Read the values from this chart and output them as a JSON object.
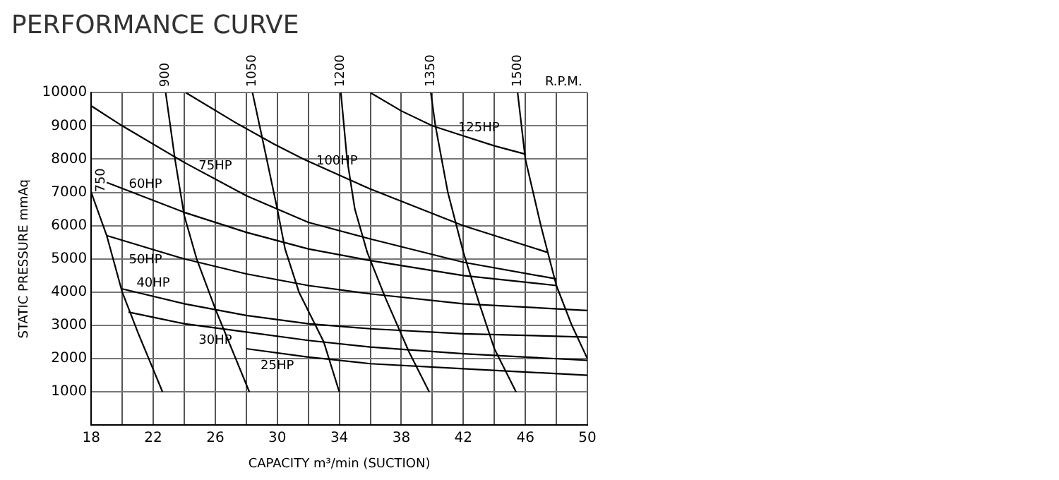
{
  "chart_data": {
    "type": "line",
    "title": "PERFORMANCE CURVE",
    "xlabel": "CAPACITY m³/min (SUCTION)",
    "ylabel": "STATIC PRESSURE mmAq",
    "xlim": [
      18,
      50
    ],
    "ylim": [
      0,
      10000
    ],
    "xticks": [
      18,
      {
        "value": 20,
        "label": null
      },
      22,
      {
        "value": 24,
        "label": null
      },
      26,
      {
        "value": 28,
        "label": null
      },
      30,
      {
        "value": 32,
        "label": null
      },
      34,
      {
        "value": 36,
        "label": null
      },
      38,
      {
        "value": 40,
        "label": null
      },
      42,
      {
        "value": 44,
        "label": null
      },
      46,
      {
        "value": 48,
        "label": null
      },
      50
    ],
    "yticks": [
      1000,
      2000,
      3000,
      4000,
      5000,
      6000,
      7000,
      8000,
      9000,
      10000
    ],
    "grid": true,
    "legend": false,
    "marker": "none",
    "line_style": "solid",
    "annotations": [
      "R.P.M."
    ],
    "series": [
      {
        "name": "125HP",
        "color": "#000000",
        "x": [
          36,
          38,
          40,
          42,
          44,
          46
        ],
        "values": [
          10000,
          9450,
          9000,
          8700,
          8400,
          8150
        ]
      },
      {
        "name": "100HP",
        "color": "#000000",
        "x": [
          24.1,
          27.3,
          29.8,
          31.7,
          36,
          42,
          47.4
        ],
        "values": [
          10000,
          9100,
          8450,
          8000,
          7100,
          6000,
          5200
        ]
      },
      {
        "name": "75HP",
        "color": "#000000",
        "x": [
          18,
          20,
          24,
          28,
          32,
          36,
          42,
          48
        ],
        "values": [
          9600,
          9000,
          7900,
          6900,
          6100,
          5600,
          4900,
          4400
        ]
      },
      {
        "name": "60HP",
        "color": "#000000",
        "x": [
          19,
          24,
          28,
          32,
          36,
          42,
          48
        ],
        "values": [
          7300,
          6400,
          5800,
          5300,
          4950,
          4500,
          4200
        ]
      },
      {
        "name": "50HP",
        "color": "#000000",
        "x": [
          19,
          24,
          28,
          32,
          36,
          42,
          50
        ],
        "values": [
          5700,
          5000,
          4550,
          4200,
          3950,
          3650,
          3450
        ]
      },
      {
        "name": "40HP",
        "color": "#000000",
        "x": [
          20,
          24,
          28,
          32,
          36,
          42,
          50
        ],
        "values": [
          4100,
          3650,
          3300,
          3050,
          2900,
          2750,
          2650
        ]
      },
      {
        "name": "30HP",
        "color": "#000000",
        "x": [
          20.4,
          24,
          28,
          32,
          36,
          42,
          50
        ],
        "values": [
          3400,
          3050,
          2800,
          2550,
          2350,
          2150,
          1950
        ]
      },
      {
        "name": "25HP",
        "color": "#000000",
        "x": [
          28,
          32,
          36,
          42,
          50
        ],
        "values": [
          2300,
          2050,
          1850,
          1700,
          1500
        ]
      },
      {
        "name": "750",
        "color": "#000000",
        "x": [
          18,
          19,
          20,
          21,
          22.6
        ],
        "values": [
          7000,
          5700,
          4000,
          2800,
          1000
        ]
      },
      {
        "name": "900",
        "color": "#000000",
        "x": [
          22.8,
          23.4,
          24,
          24.8,
          26,
          28.2
        ],
        "values": [
          10000,
          8000,
          6300,
          5000,
          3500,
          1000
        ]
      },
      {
        "name": "1050",
        "color": "#000000",
        "x": [
          28.4,
          29,
          30,
          30.5,
          31.4,
          33,
          34
        ],
        "values": [
          10000,
          8700,
          6500,
          5300,
          4000,
          2500,
          1000
        ]
      },
      {
        "name": "1200",
        "color": "#000000",
        "x": [
          34.1,
          34.5,
          35,
          35.8,
          37,
          38.5,
          39.8
        ],
        "values": [
          10000,
          8000,
          6500,
          5200,
          3800,
          2200,
          1000
        ]
      },
      {
        "name": "1350",
        "color": "#000000",
        "x": [
          39.9,
          40.2,
          41,
          42,
          43,
          44,
          45.4
        ],
        "values": [
          10000,
          9000,
          7000,
          5200,
          3700,
          2300,
          1000
        ]
      },
      {
        "name": "1500",
        "color": "#000000",
        "x": [
          45.5,
          46,
          47,
          48,
          49,
          50
        ],
        "values": [
          10000,
          8000,
          6000,
          4200,
          3000,
          2000
        ]
      }
    ]
  }
}
